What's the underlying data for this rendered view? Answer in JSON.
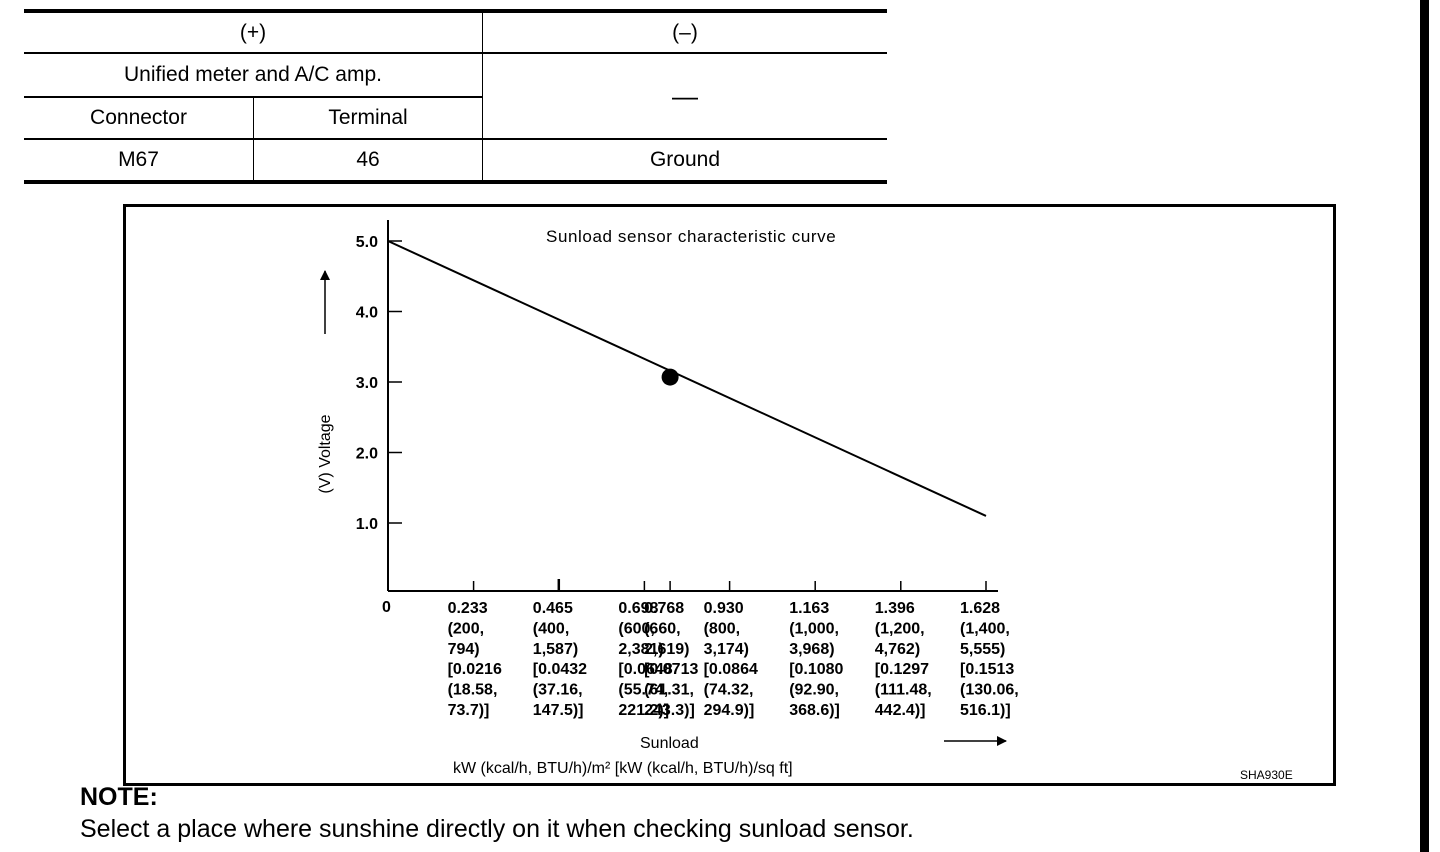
{
  "table": {
    "header_plus": "(+)",
    "header_minus": "(–)",
    "subheader": "Unified meter and A/C amp.",
    "minus_dash": "—",
    "col_connector": "Connector",
    "col_terminal": "Terminal",
    "row": {
      "connector": "M67",
      "terminal": "46",
      "minus": "Ground"
    }
  },
  "chart_data": {
    "type": "line",
    "title": "Sunload sensor characteristic curve",
    "ylabel": "(V)  Voltage",
    "xlabel": "Sunload",
    "xunit": "kW (kcal/h, BTU/h)/m²  [kW (kcal/h, BTU/h)/sq ft]",
    "y_ticks": [
      "5.0",
      "4.0",
      "3.0",
      "2.0",
      "1.0"
    ],
    "y_tick_values": [
      5.0,
      4.0,
      3.0,
      2.0,
      1.0
    ],
    "ylim": [
      0,
      5.3
    ],
    "xlim": [
      0,
      1.628
    ],
    "origin_label": "0",
    "x_ticks": [
      {
        "value": 0.233,
        "lines": [
          "0.233",
          "(200,",
          "794)",
          "[0.0216",
          "(18.58,",
          "73.7)]"
        ]
      },
      {
        "value": 0.465,
        "lines": [
          "0.465",
          "(400,",
          "1,587)",
          "[0.0432",
          "(37.16,",
          "147.5)]"
        ]
      },
      {
        "value": 0.698,
        "lines": [
          "0.698",
          "(600,",
          "2,381)",
          "[0.0648",
          "(55.74,",
          "221.2)]"
        ]
      },
      {
        "value": 0.768,
        "lines": [
          "0.768",
          "(660,",
          "2,619)",
          "[0.0713",
          "(61.31,",
          "243.3)]"
        ]
      },
      {
        "value": 0.93,
        "lines": [
          "0.930",
          "(800,",
          "3,174)",
          "[0.0864",
          "(74.32,",
          "294.9)]"
        ]
      },
      {
        "value": 1.163,
        "lines": [
          "1.163",
          "(1,000,",
          "3,968)",
          "[0.1080",
          "(92.90,",
          "368.6)]"
        ]
      },
      {
        "value": 1.396,
        "lines": [
          "1.396",
          "(1,200,",
          "4,762)",
          "[0.1297",
          "(111.48,",
          "442.4)]"
        ]
      },
      {
        "value": 1.628,
        "lines": [
          "1.628",
          "(1,400,",
          "5,555)",
          "[0.1513",
          "(130.06,",
          "516.1)]"
        ]
      }
    ],
    "series": [
      {
        "x": [
          0,
          1.628
        ],
        "y": [
          5.0,
          1.1
        ]
      }
    ],
    "marker_point": {
      "x": 0.768,
      "y": 3.07
    },
    "figure_code": "SHA930E"
  },
  "note": {
    "title": "NOTE:",
    "text": "Select a place where sunshine directly on it when checking sunload sensor."
  }
}
